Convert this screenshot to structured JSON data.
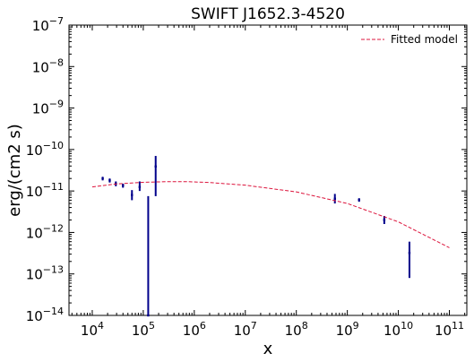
{
  "chart_data": {
    "type": "scatter",
    "title": "SWIFT J1652.3-4520",
    "xlabel": "x",
    "ylabel": "erg/(cm2 s)",
    "xscale": "log",
    "yscale": "log",
    "xlim": [
      3500,
      220000000000
    ],
    "ylim": [
      1e-14,
      1e-07
    ],
    "x_ticks": [
      {
        "value": 10000,
        "base": "10",
        "exp": "4"
      },
      {
        "value": 100000,
        "base": "10",
        "exp": "5"
      },
      {
        "value": 1000000,
        "base": "10",
        "exp": "6"
      },
      {
        "value": 10000000,
        "base": "10",
        "exp": "7"
      },
      {
        "value": 100000000,
        "base": "10",
        "exp": "8"
      },
      {
        "value": 1000000000,
        "base": "10",
        "exp": "9"
      },
      {
        "value": 10000000000,
        "base": "10",
        "exp": "10"
      },
      {
        "value": 100000000000,
        "base": "10",
        "exp": "11"
      }
    ],
    "y_ticks": [
      {
        "value": 1e-14,
        "base": "10",
        "exp": "−14"
      },
      {
        "value": 1e-13,
        "base": "10",
        "exp": "−13"
      },
      {
        "value": 1e-12,
        "base": "10",
        "exp": "−12"
      },
      {
        "value": 1e-11,
        "base": "10",
        "exp": "−11"
      },
      {
        "value": 1e-10,
        "base": "10",
        "exp": "−10"
      },
      {
        "value": 1e-09,
        "base": "10",
        "exp": "−9"
      },
      {
        "value": 1e-08,
        "base": "10",
        "exp": "−8"
      },
      {
        "value": 1e-07,
        "base": "10",
        "exp": "−7"
      }
    ],
    "legend": {
      "position": "top-right",
      "entries": [
        "Fitted model"
      ]
    },
    "grid": false,
    "colors": {
      "data": "#00008b",
      "model": "#dc143c"
    },
    "series": [
      {
        "kind": "data",
        "style": "errorbar",
        "points": [
          {
            "x": 16000,
            "y": 2e-11,
            "ylo": 1.8e-11,
            "yhi": 2.2e-11
          },
          {
            "x": 22000,
            "y": 1.8e-11,
            "ylo": 1.6e-11,
            "yhi": 2e-11
          },
          {
            "x": 29000,
            "y": 1.5e-11,
            "ylo": 1.3e-11,
            "yhi": 1.7e-11
          },
          {
            "x": 40000,
            "y": 1.35e-11,
            "ylo": 1.2e-11,
            "yhi": 1.5e-11
          },
          {
            "x": 60000,
            "y": 8e-12,
            "ylo": 6e-12,
            "yhi": 1.05e-11
          },
          {
            "x": 85000,
            "y": 1.25e-11,
            "ylo": 1e-11,
            "yhi": 1.7e-11
          },
          {
            "x": 125000,
            "y": 1e-14,
            "ylo": 1e-14,
            "yhi": 7.5e-12
          },
          {
            "x": 175000,
            "y": 3.9e-11,
            "ylo": 7.5e-12,
            "yhi": 7e-11
          },
          {
            "x": 570000000,
            "y": 6.5e-12,
            "ylo": 5e-12,
            "yhi": 8.5e-12
          },
          {
            "x": 1700000000,
            "y": 6.1e-12,
            "ylo": 5.5e-12,
            "yhi": 6.7e-12
          },
          {
            "x": 5300000000,
            "y": 2e-12,
            "ylo": 1.6e-12,
            "yhi": 2.5e-12
          },
          {
            "x": 16500000000,
            "y": 3.2e-13,
            "ylo": 8e-14,
            "yhi": 6e-13
          }
        ]
      },
      {
        "kind": "model",
        "name": "Fitted model",
        "style": "dashed",
        "points": [
          {
            "x": 10000,
            "y": 1.25e-11
          },
          {
            "x": 30000,
            "y": 1.48e-11
          },
          {
            "x": 100000,
            "y": 1.62e-11
          },
          {
            "x": 300000,
            "y": 1.68e-11
          },
          {
            "x": 700000,
            "y": 1.68e-11
          },
          {
            "x": 2000000,
            "y": 1.6e-11
          },
          {
            "x": 10000000,
            "y": 1.38e-11
          },
          {
            "x": 100000000,
            "y": 9.5e-12
          },
          {
            "x": 1000000000,
            "y": 5e-12
          },
          {
            "x": 10000000000,
            "y": 1.8e-12
          },
          {
            "x": 100000000000,
            "y": 4.3e-13
          }
        ]
      }
    ]
  }
}
